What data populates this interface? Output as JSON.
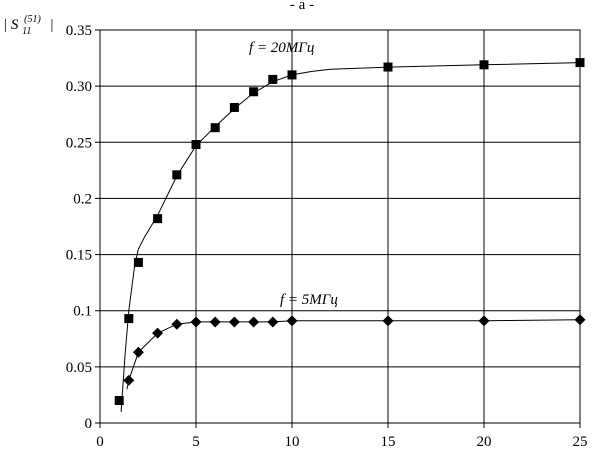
{
  "chart_data": {
    "type": "scatter",
    "title": "- a -",
    "ylabel": "|S11(51)|",
    "ylabel_parts": {
      "bar_left": "|",
      "main": "S",
      "sub": "11",
      "sup": "(51)",
      "bar_right": "|"
    },
    "xlabel": "",
    "xlim": [
      0,
      25
    ],
    "ylim": [
      0,
      0.35
    ],
    "x_ticks": [
      "0",
      "5",
      "10",
      "15",
      "20",
      "25"
    ],
    "y_ticks": [
      "0",
      "0.05",
      "0.1",
      "0.15",
      "0.2",
      "0.25",
      "0.30",
      "0.35"
    ],
    "grid": true,
    "series": [
      {
        "name": "f = 20МГц",
        "marker": "square",
        "x": [
          1,
          1.5,
          2,
          3,
          4,
          5,
          6,
          7,
          8,
          9,
          10,
          15,
          20,
          25
        ],
        "y": [
          0.02,
          0.093,
          0.143,
          0.182,
          0.221,
          0.248,
          0.263,
          0.281,
          0.295,
          0.306,
          0.31,
          0.317,
          0.319,
          0.321
        ],
        "curve_x": [
          1.1,
          1.3,
          1.5,
          1.8,
          2,
          2.3,
          3,
          4,
          5,
          6,
          7,
          8,
          9,
          10,
          11,
          12,
          15,
          20,
          25
        ],
        "curve_y": [
          0.01,
          0.06,
          0.1,
          0.14,
          0.155,
          0.165,
          0.185,
          0.22,
          0.247,
          0.264,
          0.28,
          0.294,
          0.304,
          0.31,
          0.313,
          0.315,
          0.317,
          0.319,
          0.321
        ]
      },
      {
        "name": "f = 5МГц",
        "marker": "diamond",
        "x": [
          1.5,
          2,
          3,
          4,
          5,
          6,
          7,
          8,
          9,
          10,
          15,
          20,
          25
        ],
        "y": [
          0.038,
          0.063,
          0.08,
          0.088,
          0.09,
          0.09,
          0.09,
          0.09,
          0.09,
          0.091,
          0.091,
          0.091,
          0.092
        ],
        "curve_x": [
          1.4,
          1.5,
          2,
          3,
          4,
          5,
          6,
          7,
          8,
          9,
          10,
          15,
          20,
          25
        ],
        "curve_y": [
          0.03,
          0.038,
          0.063,
          0.08,
          0.088,
          0.09,
          0.09,
          0.09,
          0.09,
          0.09,
          0.091,
          0.091,
          0.091,
          0.092
        ]
      }
    ]
  }
}
